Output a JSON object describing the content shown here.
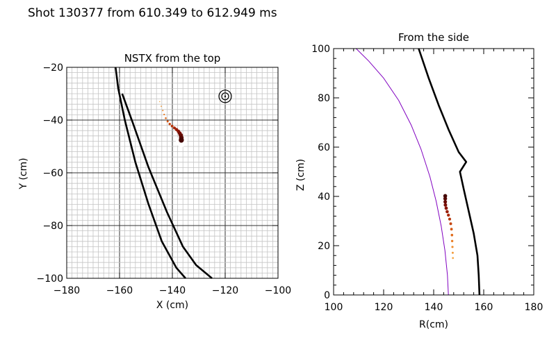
{
  "suptitle": "Shot 130377 from 610.349 to 612.949 ms",
  "chart_data": [
    {
      "type": "scatter",
      "title": "NSTX from the top",
      "xlabel": "X (cm)",
      "ylabel": "Y (cm)",
      "xlim": [
        -180,
        -100
      ],
      "ylim": [
        -100,
        -20
      ],
      "xticks": [
        -180,
        -160,
        -140,
        -120,
        -100
      ],
      "yticks": [
        -100,
        -80,
        -60,
        -40,
        -20
      ],
      "xticklabels": [
        "−180",
        "−160",
        "−140",
        "−120",
        "−100"
      ],
      "yticklabels": [
        "−100",
        "−80",
        "−60",
        "−40",
        "−20"
      ],
      "grid": true,
      "minor_grid_step": 2,
      "major_grid_step": 20,
      "target_marker": {
        "x": -120,
        "y": -31
      },
      "lines": [
        {
          "name": "wall-outer",
          "points": [
            [
              -161.5,
              -20
            ],
            [
              -160.5,
              -28
            ],
            [
              -158,
              -40
            ],
            [
              -154,
              -56
            ],
            [
              -149,
              -72
            ],
            [
              -144,
              -86
            ],
            [
              -138.5,
              -96
            ],
            [
              -135,
              -100
            ]
          ]
        },
        {
          "name": "wall-inner",
          "points": [
            [
              -159,
              -30
            ],
            [
              -155,
              -41
            ],
            [
              -149,
              -58
            ],
            [
              -142,
              -75
            ],
            [
              -136,
              -88
            ],
            [
              -131,
              -95
            ],
            [
              -125,
              -100
            ]
          ]
        }
      ],
      "points": [
        {
          "x": -144.8,
          "y": -33.0,
          "size": 0.8,
          "color": "#f5a84a"
        },
        {
          "x": -144.2,
          "y": -34.8,
          "size": 0.9,
          "color": "#f29b3c"
        },
        {
          "x": -143.6,
          "y": -36.4,
          "size": 1.0,
          "color": "#ee8c2e"
        },
        {
          "x": -143.1,
          "y": -37.9,
          "size": 1.1,
          "color": "#e97b22"
        },
        {
          "x": -142.5,
          "y": -39.3,
          "size": 1.3,
          "color": "#e06a1a"
        },
        {
          "x": -141.8,
          "y": -40.5,
          "size": 1.5,
          "color": "#d45814"
        },
        {
          "x": -141.0,
          "y": -41.5,
          "size": 1.7,
          "color": "#c5460f"
        },
        {
          "x": -140.1,
          "y": -42.3,
          "size": 1.9,
          "color": "#b6360c"
        },
        {
          "x": -139.2,
          "y": -43.0,
          "size": 2.1,
          "color": "#a8280a"
        },
        {
          "x": -138.4,
          "y": -43.6,
          "size": 2.3,
          "color": "#9a1d08"
        },
        {
          "x": -137.7,
          "y": -44.3,
          "size": 2.5,
          "color": "#8a1507"
        },
        {
          "x": -137.2,
          "y": -45.0,
          "size": 2.8,
          "color": "#7a0f06"
        },
        {
          "x": -136.8,
          "y": -45.8,
          "size": 3.1,
          "color": "#680b05"
        },
        {
          "x": -136.6,
          "y": -46.7,
          "size": 3.4,
          "color": "#560904"
        },
        {
          "x": -136.6,
          "y": -47.6,
          "size": 3.7,
          "color": "#440703"
        }
      ]
    },
    {
      "type": "scatter",
      "title": "From the side",
      "xlabel": "R(cm)",
      "ylabel": "Z (cm)",
      "xlim": [
        100,
        180
      ],
      "ylim": [
        0,
        100
      ],
      "xticks": [
        100,
        120,
        140,
        160,
        180
      ],
      "yticks": [
        0,
        20,
        40,
        60,
        80,
        100
      ],
      "xticklabels": [
        "100",
        "120",
        "140",
        "160",
        "180"
      ],
      "yticklabels": [
        "0",
        "20",
        "40",
        "60",
        "80",
        "100"
      ],
      "grid": false,
      "lines": [
        {
          "name": "separatrix",
          "color": "#8000c0",
          "points": [
            [
              109,
              100
            ],
            [
              114,
              95
            ],
            [
              120,
              88
            ],
            [
              126,
              79
            ],
            [
              131,
              69
            ],
            [
              135,
              59
            ],
            [
              138.5,
              48
            ],
            [
              141,
              38
            ],
            [
              143,
              28
            ],
            [
              144.5,
              18
            ],
            [
              145.5,
              8
            ],
            [
              145.9,
              0
            ]
          ]
        },
        {
          "name": "wall",
          "color": "#000000",
          "points": [
            [
              134,
              100
            ],
            [
              138,
              88
            ],
            [
              142,
              77
            ],
            [
              146,
              67
            ],
            [
              150,
              58
            ],
            [
              153,
              54
            ],
            [
              150.5,
              50
            ],
            [
              152,
              43
            ],
            [
              154,
              34
            ],
            [
              156,
              25
            ],
            [
              157.5,
              16
            ],
            [
              158,
              8
            ],
            [
              158.3,
              0
            ]
          ]
        }
      ],
      "points": [
        {
          "x": 147.7,
          "y": 15.0,
          "size": 1.4,
          "color": "#f5a84a"
        },
        {
          "x": 147.6,
          "y": 17.1,
          "size": 1.5,
          "color": "#f29b3c"
        },
        {
          "x": 147.5,
          "y": 19.5,
          "size": 1.6,
          "color": "#ee8c2e"
        },
        {
          "x": 147.4,
          "y": 21.9,
          "size": 1.7,
          "color": "#e97b22"
        },
        {
          "x": 147.3,
          "y": 24.3,
          "size": 1.8,
          "color": "#e06a1a"
        },
        {
          "x": 147.1,
          "y": 26.7,
          "size": 1.9,
          "color": "#d45814"
        },
        {
          "x": 146.8,
          "y": 28.9,
          "size": 2.0,
          "color": "#c5460f"
        },
        {
          "x": 146.4,
          "y": 30.8,
          "size": 2.1,
          "color": "#b6360c"
        },
        {
          "x": 145.9,
          "y": 32.4,
          "size": 2.2,
          "color": "#a8280a"
        },
        {
          "x": 145.4,
          "y": 33.8,
          "size": 2.3,
          "color": "#9a1d08"
        },
        {
          "x": 145.0,
          "y": 35.2,
          "size": 2.4,
          "color": "#8a1507"
        },
        {
          "x": 144.7,
          "y": 36.5,
          "size": 2.5,
          "color": "#7a0f06"
        },
        {
          "x": 144.6,
          "y": 37.8,
          "size": 2.6,
          "color": "#680b05"
        },
        {
          "x": 144.6,
          "y": 39.1,
          "size": 2.7,
          "color": "#560904"
        },
        {
          "x": 144.6,
          "y": 40.2,
          "size": 2.8,
          "color": "#440703"
        }
      ]
    }
  ]
}
